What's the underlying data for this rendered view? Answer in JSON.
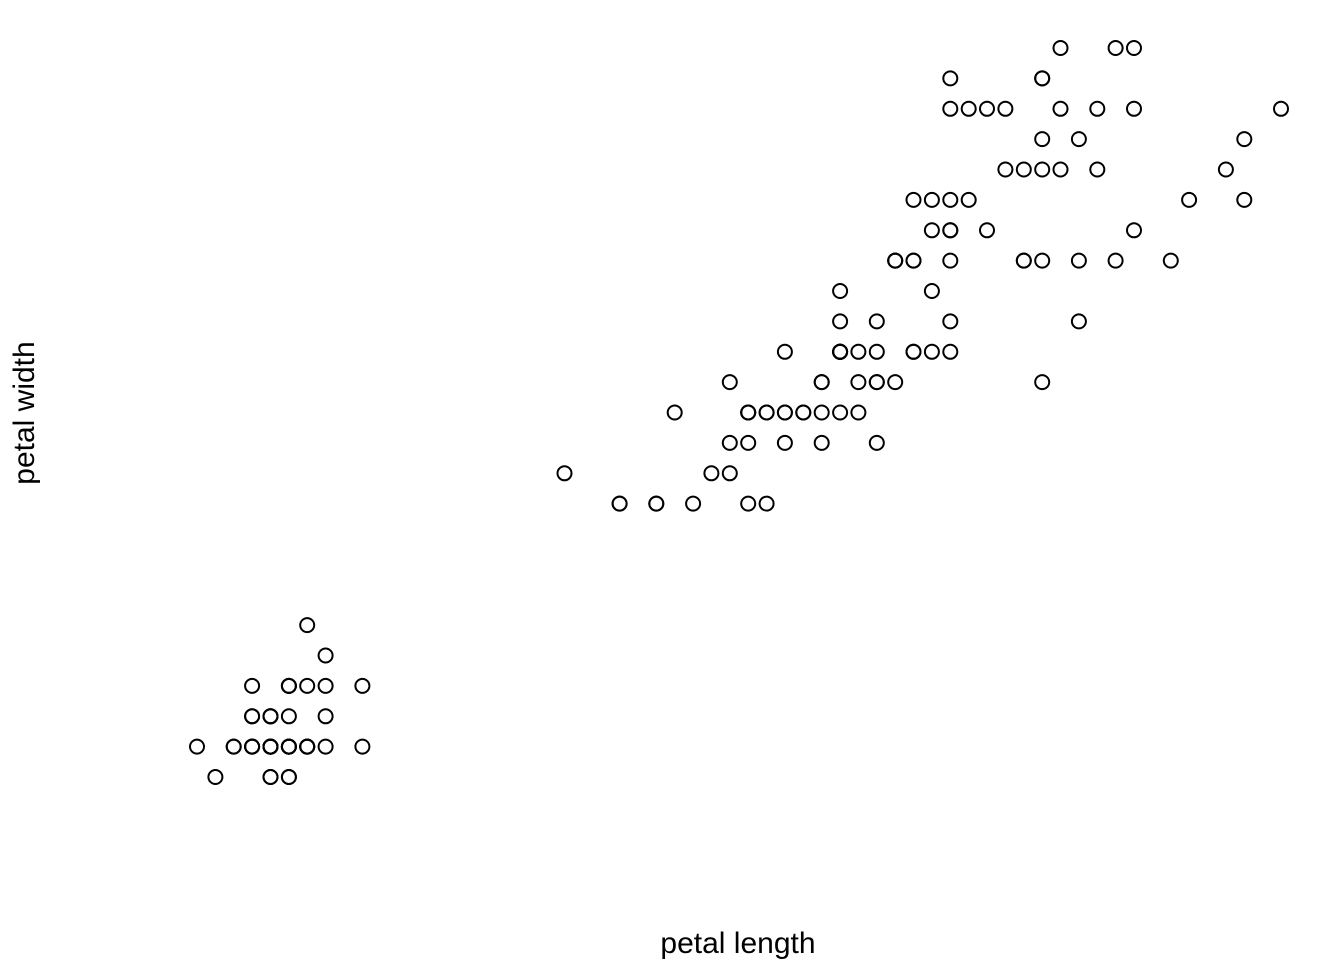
{
  "chart_data": {
    "type": "scatter",
    "title": "",
    "xlabel": "petal length",
    "ylabel": "petal width",
    "xlim": [
      0.882,
      7.018
    ],
    "ylim": [
      0.004,
      2.596
    ],
    "grid": false,
    "legend": "none",
    "axes_visible": false,
    "marker": "open-circle",
    "point_color": "#000000",
    "points": [
      [
        1.4,
        0.2
      ],
      [
        1.4,
        0.2
      ],
      [
        1.3,
        0.2
      ],
      [
        1.5,
        0.2
      ],
      [
        1.4,
        0.2
      ],
      [
        1.7,
        0.4
      ],
      [
        1.4,
        0.3
      ],
      [
        1.5,
        0.2
      ],
      [
        1.4,
        0.2
      ],
      [
        1.5,
        0.1
      ],
      [
        1.5,
        0.2
      ],
      [
        1.6,
        0.2
      ],
      [
        1.4,
        0.1
      ],
      [
        1.1,
        0.1
      ],
      [
        1.2,
        0.2
      ],
      [
        1.5,
        0.4
      ],
      [
        1.3,
        0.4
      ],
      [
        1.4,
        0.3
      ],
      [
        1.7,
        0.3
      ],
      [
        1.5,
        0.3
      ],
      [
        1.7,
        0.2
      ],
      [
        1.5,
        0.4
      ],
      [
        1.0,
        0.2
      ],
      [
        1.7,
        0.5
      ],
      [
        1.9,
        0.2
      ],
      [
        1.6,
        0.2
      ],
      [
        1.6,
        0.4
      ],
      [
        1.5,
        0.2
      ],
      [
        1.4,
        0.2
      ],
      [
        1.6,
        0.2
      ],
      [
        1.6,
        0.2
      ],
      [
        1.5,
        0.4
      ],
      [
        1.5,
        0.1
      ],
      [
        1.4,
        0.2
      ],
      [
        1.5,
        0.2
      ],
      [
        1.2,
        0.2
      ],
      [
        1.3,
        0.2
      ],
      [
        1.4,
        0.1
      ],
      [
        1.3,
        0.2
      ],
      [
        1.5,
        0.2
      ],
      [
        1.3,
        0.3
      ],
      [
        1.3,
        0.3
      ],
      [
        1.3,
        0.2
      ],
      [
        1.6,
        0.6
      ],
      [
        1.9,
        0.4
      ],
      [
        1.4,
        0.3
      ],
      [
        1.6,
        0.2
      ],
      [
        1.4,
        0.2
      ],
      [
        1.5,
        0.2
      ],
      [
        1.4,
        0.2
      ],
      [
        4.7,
        1.4
      ],
      [
        4.5,
        1.5
      ],
      [
        4.9,
        1.5
      ],
      [
        4.0,
        1.3
      ],
      [
        4.6,
        1.5
      ],
      [
        4.5,
        1.3
      ],
      [
        4.7,
        1.6
      ],
      [
        3.3,
        1.0
      ],
      [
        4.6,
        1.3
      ],
      [
        3.9,
        1.4
      ],
      [
        3.5,
        1.0
      ],
      [
        4.2,
        1.5
      ],
      [
        4.0,
        1.0
      ],
      [
        4.7,
        1.4
      ],
      [
        3.6,
        1.3
      ],
      [
        4.4,
        1.4
      ],
      [
        4.5,
        1.5
      ],
      [
        4.1,
        1.0
      ],
      [
        4.5,
        1.5
      ],
      [
        3.9,
        1.1
      ],
      [
        4.8,
        1.8
      ],
      [
        4.0,
        1.3
      ],
      [
        4.9,
        1.5
      ],
      [
        4.7,
        1.2
      ],
      [
        4.3,
        1.3
      ],
      [
        4.4,
        1.4
      ],
      [
        4.8,
        1.4
      ],
      [
        5.0,
        1.7
      ],
      [
        4.5,
        1.5
      ],
      [
        3.5,
        1.0
      ],
      [
        3.8,
        1.1
      ],
      [
        3.7,
        1.0
      ],
      [
        3.9,
        1.2
      ],
      [
        5.1,
        1.6
      ],
      [
        4.5,
        1.5
      ],
      [
        4.5,
        1.6
      ],
      [
        4.7,
        1.5
      ],
      [
        4.4,
        1.3
      ],
      [
        4.1,
        1.3
      ],
      [
        4.0,
        1.3
      ],
      [
        4.4,
        1.2
      ],
      [
        4.6,
        1.4
      ],
      [
        4.0,
        1.2
      ],
      [
        3.3,
        1.0
      ],
      [
        4.2,
        1.3
      ],
      [
        4.2,
        1.2
      ],
      [
        4.2,
        1.3
      ],
      [
        4.3,
        1.3
      ],
      [
        3.0,
        1.1
      ],
      [
        4.1,
        1.3
      ],
      [
        6.0,
        2.5
      ],
      [
        5.1,
        1.9
      ],
      [
        5.9,
        2.1
      ],
      [
        5.6,
        1.8
      ],
      [
        5.8,
        2.2
      ],
      [
        6.6,
        2.1
      ],
      [
        4.5,
        1.7
      ],
      [
        6.3,
        1.8
      ],
      [
        5.8,
        1.8
      ],
      [
        6.1,
        2.5
      ],
      [
        5.1,
        2.0
      ],
      [
        5.3,
        1.9
      ],
      [
        5.5,
        2.1
      ],
      [
        5.0,
        2.0
      ],
      [
        5.1,
        2.4
      ],
      [
        5.3,
        2.3
      ],
      [
        5.5,
        1.8
      ],
      [
        6.7,
        2.2
      ],
      [
        6.9,
        2.3
      ],
      [
        5.0,
        1.5
      ],
      [
        5.7,
        2.3
      ],
      [
        4.9,
        2.0
      ],
      [
        6.7,
        2.0
      ],
      [
        4.9,
        1.8
      ],
      [
        5.7,
        2.1
      ],
      [
        6.0,
        1.8
      ],
      [
        4.8,
        1.8
      ],
      [
        4.9,
        1.8
      ],
      [
        5.6,
        2.1
      ],
      [
        5.8,
        1.6
      ],
      [
        6.1,
        1.9
      ],
      [
        6.4,
        2.0
      ],
      [
        5.6,
        2.2
      ],
      [
        5.1,
        1.5
      ],
      [
        5.6,
        1.4
      ],
      [
        6.1,
        2.3
      ],
      [
        5.6,
        2.4
      ],
      [
        5.5,
        1.8
      ],
      [
        4.8,
        1.8
      ],
      [
        5.4,
        2.1
      ],
      [
        5.6,
        2.4
      ],
      [
        5.1,
        2.3
      ],
      [
        5.1,
        1.9
      ],
      [
        5.9,
        2.3
      ],
      [
        5.7,
        2.5
      ],
      [
        5.2,
        2.3
      ],
      [
        5.0,
        1.9
      ],
      [
        5.2,
        2.0
      ],
      [
        5.4,
        2.3
      ],
      [
        5.1,
        1.8
      ]
    ]
  }
}
